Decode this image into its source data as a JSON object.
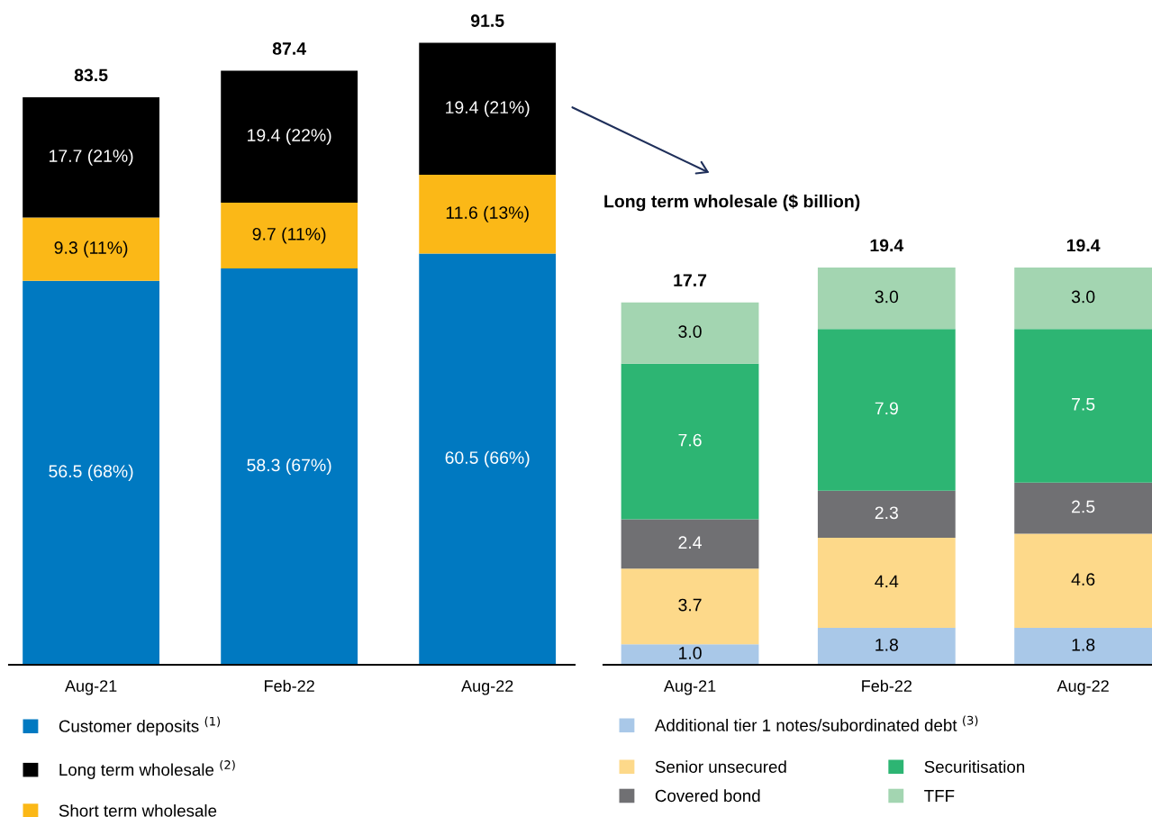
{
  "chart_data": [
    {
      "type": "bar",
      "stacked": true,
      "categories": [
        "Aug-21",
        "Feb-22",
        "Aug-22"
      ],
      "tick_labels": "x",
      "legend": "bottom",
      "grid": false,
      "series": [
        {
          "name": "Customer deposits $^{(1)}$",
          "color": "#0079c1",
          "values": [
            56.5,
            58.3,
            60.5
          ],
          "value_labels": [
            "56.5 (68%)",
            "58.3 (67%)",
            "60.5 (66%)"
          ]
        },
        {
          "name": "Short term wholesale",
          "color": "#fbb817",
          "values": [
            9.3,
            9.7,
            11.6
          ],
          "value_labels": [
            "9.3 (11%)",
            "9.7 (11%)",
            "11.6 (13%)"
          ]
        },
        {
          "name": "Long term wholesale $^{(2)}$",
          "color": "#000000",
          "values": [
            17.7,
            19.4,
            19.4
          ],
          "value_labels": [
            "17.7 (21%)",
            "19.4 (22%)",
            "19.4 (21%)"
          ]
        }
      ],
      "totals": [
        "83.5",
        "87.4",
        "91.5"
      ]
    },
    {
      "type": "bar",
      "stacked": true,
      "title": "Long term wholesale ($ billion)",
      "categories": [
        "Aug-21",
        "Feb-22",
        "Aug-22"
      ],
      "tick_labels": "x",
      "legend": "bottom",
      "grid": false,
      "series": [
        {
          "name": "Additional tier 1 notes/subordinated debt $^{(3)}$",
          "color": "#a9c8e8",
          "values": [
            1.0,
            1.8,
            1.8
          ],
          "value_labels": [
            "1.0",
            "1.8",
            "1.8"
          ]
        },
        {
          "name": "Senior unsecured",
          "color": "#fdd98a",
          "values": [
            3.7,
            4.4,
            4.6
          ],
          "value_labels": [
            "3.7",
            "4.4",
            "4.6"
          ]
        },
        {
          "name": "Covered bond",
          "color": "#707073",
          "values": [
            2.4,
            2.3,
            2.5
          ],
          "value_labels": [
            "2.4",
            "2.3",
            "2.5"
          ]
        },
        {
          "name": "Securitisation",
          "color": "#2db573",
          "values": [
            7.6,
            7.9,
            7.5
          ],
          "value_labels": [
            "7.6",
            "7.9",
            "7.5"
          ]
        },
        {
          "name": "TFF",
          "color": "#a3d5b1",
          "values": [
            3.0,
            3.0,
            3.0
          ],
          "value_labels": [
            "3.0",
            "3.0",
            "3.0"
          ]
        }
      ],
      "totals": [
        "17.7",
        "19.4",
        "19.4"
      ]
    }
  ]
}
